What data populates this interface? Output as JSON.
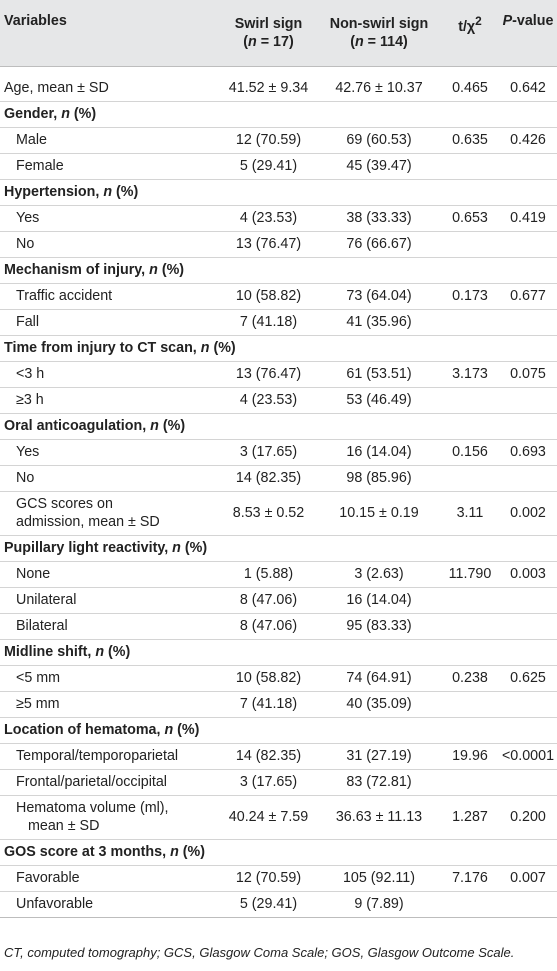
{
  "table": {
    "headers": {
      "variables": "Variables",
      "swirl_title": "Swirl sign",
      "swirl_n": "(n = 17)",
      "nonswirl_title": "Non-swirl sign",
      "nonswirl_n": "(n = 114)",
      "tchi_base": "t/χ",
      "tchi_sup": "2",
      "p_italic": "P",
      "p_rest": "-value"
    },
    "age_row": {
      "label": "Age, mean ± SD",
      "swirl": "41.52 ± 9.34",
      "nonswirl": "42.76 ± 10.37",
      "t": "0.465",
      "p": "0.642"
    },
    "gender": {
      "header": "Gender, n (%)",
      "rows": [
        {
          "label": "Male",
          "swirl": "12 (70.59)",
          "nonswirl": "69 (60.53)",
          "t": "0.635",
          "p": "0.426"
        },
        {
          "label": "Female",
          "swirl": "5 (29.41)",
          "nonswirl": "45 (39.47)",
          "t": "",
          "p": ""
        }
      ]
    },
    "hypertension": {
      "header": "Hypertension, n (%)",
      "rows": [
        {
          "label": "Yes",
          "swirl": "4 (23.53)",
          "nonswirl": "38 (33.33)",
          "t": "0.653",
          "p": "0.419"
        },
        {
          "label": "No",
          "swirl": "13 (76.47)",
          "nonswirl": "76 (66.67)",
          "t": "",
          "p": ""
        }
      ]
    },
    "mechanism": {
      "header": "Mechanism of injury, n (%)",
      "rows": [
        {
          "label": "Traffic accident",
          "swirl": "10 (58.82)",
          "nonswirl": "73 (64.04)",
          "t": "0.173",
          "p": "0.677"
        },
        {
          "label": "Fall",
          "swirl": "7 (41.18)",
          "nonswirl": "41 (35.96)",
          "t": "",
          "p": ""
        }
      ]
    },
    "time_ct": {
      "header": "Time from injury to CT scan, n (%)",
      "rows": [
        {
          "label": "<3 h",
          "swirl": "13 (76.47)",
          "nonswirl": "61 (53.51)",
          "t": "3.173",
          "p": "0.075"
        },
        {
          "label": "≥3 h",
          "swirl": "4 (23.53)",
          "nonswirl": "53 (46.49)",
          "t": "",
          "p": ""
        }
      ]
    },
    "anticoag": {
      "header": "Oral anticoagulation, n (%)",
      "rows": [
        {
          "label": "Yes",
          "swirl": "3 (17.65)",
          "nonswirl": "16 (14.04)",
          "t": "0.156",
          "p": "0.693"
        },
        {
          "label": "No",
          "swirl": "14 (82.35)",
          "nonswirl": "98 (85.96)",
          "t": "",
          "p": ""
        }
      ]
    },
    "gcs": {
      "label_line1": "GCS scores on",
      "label_line2": "admission, mean ± SD",
      "swirl": "8.53 ± 0.52",
      "nonswirl": "10.15 ± 0.19",
      "t": "3.11",
      "p": "0.002"
    },
    "pupillary": {
      "header": "Pupillary light reactivity, n (%)",
      "rows": [
        {
          "label": "None",
          "swirl": "1 (5.88)",
          "nonswirl": "3 (2.63)",
          "t": "11.790",
          "p": "0.003"
        },
        {
          "label": "Unilateral",
          "swirl": "8 (47.06)",
          "nonswirl": "16 (14.04)",
          "t": "",
          "p": ""
        },
        {
          "label": "Bilateral",
          "swirl": "8 (47.06)",
          "nonswirl": "95 (83.33)",
          "t": "",
          "p": ""
        }
      ]
    },
    "midline": {
      "header": "Midline shift, n (%)",
      "rows": [
        {
          "label": "<5 mm",
          "swirl": "10 (58.82)",
          "nonswirl": "74 (64.91)",
          "t": "0.238",
          "p": "0.625"
        },
        {
          "label": "≥5 mm",
          "swirl": "7 (41.18)",
          "nonswirl": "40 (35.09)",
          "t": "",
          "p": ""
        }
      ]
    },
    "location": {
      "header": "Location of hematoma, n (%)",
      "rows": [
        {
          "label": "Temporal/temporoparietal",
          "swirl": "14 (82.35)",
          "nonswirl": "31 (27.19)",
          "t": "19.96",
          "p": "<0.0001"
        },
        {
          "label": "Frontal/parietal/occipital",
          "swirl": "3 (17.65)",
          "nonswirl": "83 (72.81)",
          "t": "",
          "p": ""
        }
      ]
    },
    "volume": {
      "label_line1": "Hematoma volume (ml),",
      "label_line2": "mean ± SD",
      "swirl": "40.24 ± 7.59",
      "nonswirl": "36.63 ± 11.13",
      "t": "1.287",
      "p": "0.200"
    },
    "gos": {
      "header": "GOS score at 3 months, n (%)",
      "rows": [
        {
          "label": "Favorable",
          "swirl": "12 (70.59)",
          "nonswirl": "105 (92.11)",
          "t": "7.176",
          "p": "0.007"
        },
        {
          "label": "Unfavorable",
          "swirl": "5 (29.41)",
          "nonswirl": "9 (7.89)",
          "t": "",
          "p": ""
        }
      ]
    }
  },
  "footnote": "CT, computed tomography; GCS, Glasgow Coma Scale; GOS, Glasgow Outcome Scale.",
  "colors": {
    "header_bg": "#e6e7e8",
    "row_rule": "#d4d4d4",
    "text": "#222222"
  }
}
